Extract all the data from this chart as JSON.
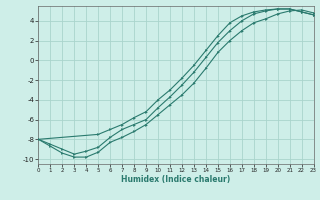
{
  "xlabel": "Humidex (Indice chaleur)",
  "xlim": [
    0,
    23
  ],
  "ylim": [
    -10.5,
    5.5
  ],
  "xticks": [
    0,
    1,
    2,
    3,
    4,
    5,
    6,
    7,
    8,
    9,
    10,
    11,
    12,
    13,
    14,
    15,
    16,
    17,
    18,
    19,
    20,
    21,
    22,
    23
  ],
  "yticks": [
    -10,
    -8,
    -6,
    -4,
    -2,
    0,
    2,
    4
  ],
  "bg_color": "#ceeee8",
  "grid_color": "#aad4cc",
  "line_color": "#2a7a6e",
  "curve1_x": [
    0,
    1,
    2,
    3,
    4,
    5,
    6,
    7,
    8,
    9,
    10,
    11,
    12,
    13,
    14,
    15,
    16,
    17,
    18,
    19,
    20,
    21,
    22,
    23
  ],
  "curve1_y": [
    -8.0,
    -8.7,
    -9.4,
    -9.8,
    -9.8,
    -9.3,
    -8.3,
    -7.8,
    -7.2,
    -6.5,
    -5.5,
    -4.5,
    -3.5,
    -2.3,
    -0.8,
    0.8,
    2.0,
    3.0,
    3.8,
    4.2,
    4.7,
    5.0,
    5.1,
    4.8
  ],
  "curve2_x": [
    0,
    1,
    2,
    3,
    4,
    5,
    6,
    7,
    8,
    9,
    10,
    11,
    12,
    13,
    14,
    15,
    16,
    17,
    18,
    19,
    20,
    21,
    22,
    23
  ],
  "curve2_y": [
    -8.0,
    -8.5,
    -9.0,
    -9.5,
    -9.2,
    -8.8,
    -7.8,
    -7.0,
    -6.5,
    -6.0,
    -4.8,
    -3.7,
    -2.5,
    -1.2,
    0.3,
    1.8,
    3.0,
    4.0,
    4.7,
    5.0,
    5.2,
    5.2,
    4.9,
    4.6
  ],
  "curve3_x": [
    0,
    5,
    6,
    7,
    8,
    9,
    10,
    11,
    12,
    13,
    14,
    15,
    16,
    17,
    18,
    19,
    20,
    21,
    22,
    23
  ],
  "curve3_y": [
    -8.0,
    -7.5,
    -7.0,
    -6.5,
    -5.8,
    -5.2,
    -4.0,
    -3.0,
    -1.8,
    -0.5,
    1.0,
    2.5,
    3.8,
    4.5,
    4.9,
    5.1,
    5.2,
    5.2,
    4.9,
    4.6
  ]
}
